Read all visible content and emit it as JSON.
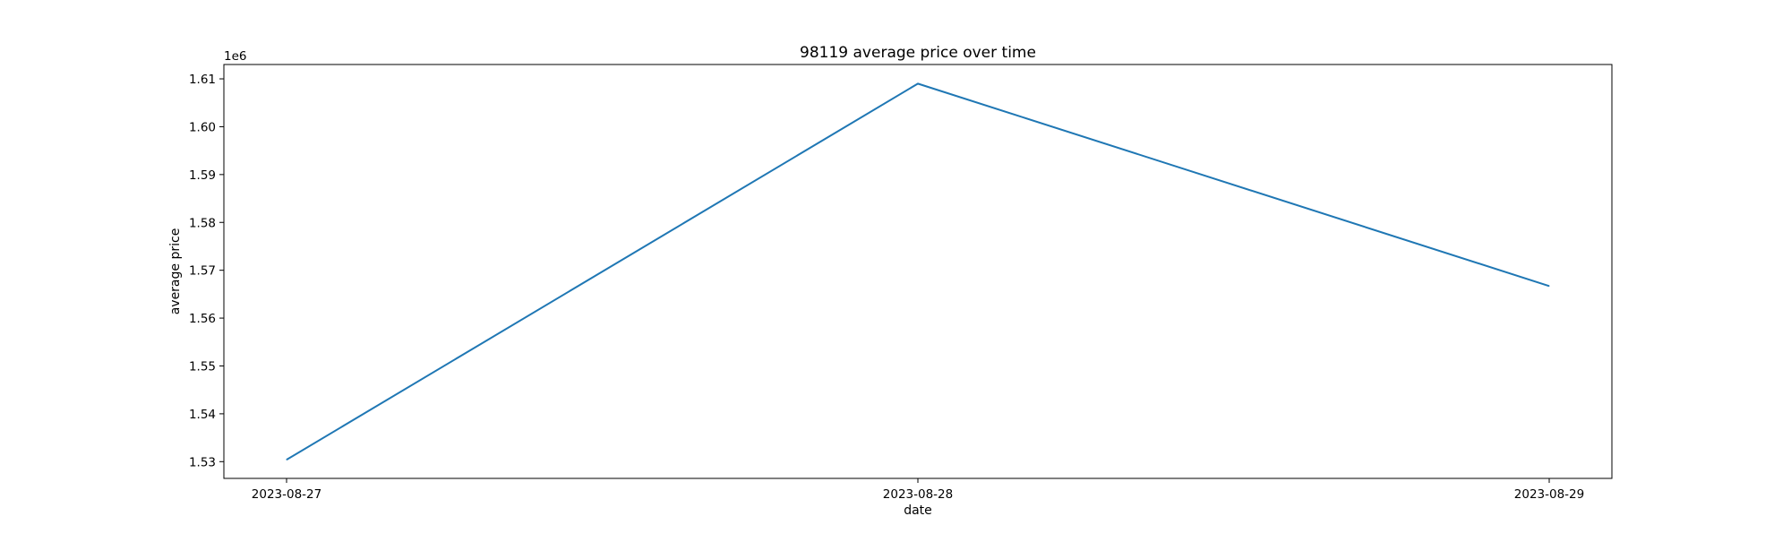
{
  "chart_data": {
    "type": "line",
    "title": "98119 average price over time",
    "xlabel": "date",
    "ylabel": "average price",
    "y_offset_text": "1e6",
    "x": [
      "2023-08-27",
      "2023-08-28",
      "2023-08-29"
    ],
    "series": [
      {
        "values": [
          1530400,
          1609000,
          1566700
        ]
      }
    ],
    "ylim": [
      1.5265,
      1.613
    ],
    "ylim_scale": 1000000,
    "yticks": [
      1.53,
      1.54,
      1.55,
      1.56,
      1.57,
      1.58,
      1.59,
      1.6,
      1.61
    ],
    "ytick_labels": [
      "1.53",
      "1.54",
      "1.55",
      "1.56",
      "1.57",
      "1.58",
      "1.59",
      "1.60",
      "1.61"
    ],
    "grid": false,
    "legend": "none",
    "colors": {
      "line": "#1f77b4",
      "axes": "#000000",
      "background": "#ffffff"
    }
  }
}
